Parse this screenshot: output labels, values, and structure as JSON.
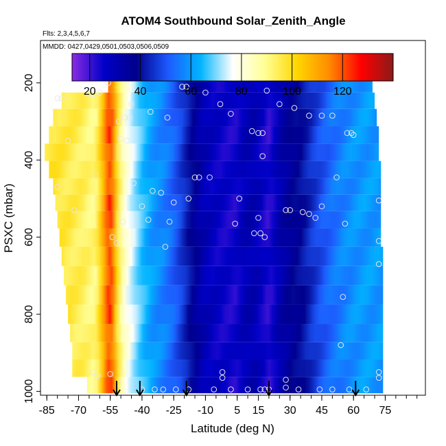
{
  "chart_data": {
    "type": "heatmap",
    "title": "ATOM4 Southbound Solar_Zenith_Angle",
    "flights_note": "Flts: 2,3,4,5,6,7",
    "dates_note": "MMDD: 0427,0429,0501,0503,0506,0509",
    "xlabel": "Latitude (deg N)",
    "ylabel": "PSXC (mbar)",
    "xlim": [
      -88,
      94
    ],
    "ylim": [
      1010,
      90
    ],
    "x_ticks": [
      -85,
      -70,
      -55,
      -40,
      -25,
      -10,
      5,
      15,
      30,
      45,
      60,
      75
    ],
    "x_tick_labels": [
      "-85",
      "-70",
      "-55",
      "-40",
      "-25",
      "-10",
      "5",
      "15",
      "30",
      "45",
      "60",
      "75"
    ],
    "y_ticks": [
      200,
      400,
      600,
      800,
      1000
    ],
    "y_tick_labels": [
      "200",
      "400",
      "600",
      "800",
      "1000"
    ],
    "grid": false,
    "colorbar": {
      "placement": "top",
      "range": [
        13,
        140
      ],
      "ticks": [
        20,
        40,
        60,
        80,
        100,
        120
      ],
      "tick_labels": [
        "20",
        "40",
        "60",
        "80",
        "100",
        "120"
      ],
      "colors": [
        "#8a2be2",
        "#0000c8",
        "#00008b",
        "#1e5aff",
        "#00b4ff",
        "#ffffff",
        "#ffff96",
        "#ffd700",
        "#ff8c00",
        "#ff0000",
        "#8b1a1a"
      ]
    },
    "color_profile": {
      "lat": [
        -84,
        -75,
        -68,
        -62,
        -58,
        -55,
        -52,
        -49,
        -45,
        -40,
        -35,
        -30,
        -25,
        -20,
        -15,
        -12,
        -8,
        -4,
        0,
        4,
        8,
        12,
        16,
        20,
        25,
        30,
        35,
        40,
        45,
        50,
        55,
        60,
        65,
        70,
        74
      ],
      "sza": [
        98,
        96,
        94,
        90,
        110,
        125,
        100,
        84,
        75,
        66,
        60,
        57,
        52,
        45,
        36,
        31,
        28,
        26,
        25,
        24,
        29,
        31,
        27,
        22,
        31,
        36,
        39,
        45,
        50,
        54,
        57,
        59,
        60,
        60,
        60
      ]
    },
    "curtain_levels": [
      {
        "p": 205,
        "lat_min": -56,
        "lat_max": 69
      },
      {
        "p": 245,
        "lat_min": -78,
        "lat_max": 70
      },
      {
        "p": 290,
        "lat_min": -82,
        "lat_max": 71
      },
      {
        "p": 335,
        "lat_min": -84,
        "lat_max": 72
      },
      {
        "p": 380,
        "lat_min": -86,
        "lat_max": 72
      },
      {
        "p": 425,
        "lat_min": -84,
        "lat_max": 73
      },
      {
        "p": 470,
        "lat_min": -82,
        "lat_max": 73
      },
      {
        "p": 510,
        "lat_min": -81,
        "lat_max": 73
      },
      {
        "p": 555,
        "lat_min": -80,
        "lat_max": 73
      },
      {
        "p": 600,
        "lat_min": -79,
        "lat_max": 73
      },
      {
        "p": 650,
        "lat_min": -78,
        "lat_max": 74
      },
      {
        "p": 700,
        "lat_min": -77,
        "lat_max": 74
      },
      {
        "p": 750,
        "lat_min": -76,
        "lat_max": 74
      },
      {
        "p": 800,
        "lat_min": -75,
        "lat_max": 74
      },
      {
        "p": 850,
        "lat_min": -74,
        "lat_max": 74
      },
      {
        "p": 895,
        "lat_min": -73,
        "lat_max": 74
      },
      {
        "p": 940,
        "lat_min": -73,
        "lat_max": 74
      },
      {
        "p": 985,
        "lat_min": -66,
        "lat_max": 74
      }
    ],
    "observation_points": [
      {
        "lat": -56,
        "p": 200
      },
      {
        "lat": -60,
        "p": 225
      },
      {
        "lat": -21,
        "p": 210
      },
      {
        "lat": -19,
        "p": 210
      },
      {
        "lat": -10,
        "p": 225
      },
      {
        "lat": -3,
        "p": 255
      },
      {
        "lat": 19,
        "p": 220
      },
      {
        "lat": 2,
        "p": 280
      },
      {
        "lat": 25,
        "p": 255
      },
      {
        "lat": 32,
        "p": 265
      },
      {
        "lat": 39,
        "p": 285
      },
      {
        "lat": 45,
        "p": 285
      },
      {
        "lat": 50,
        "p": 285
      },
      {
        "lat": -80,
        "p": 240
      },
      {
        "lat": -78,
        "p": 240
      },
      {
        "lat": -65,
        "p": 230
      },
      {
        "lat": -63,
        "p": 230
      },
      {
        "lat": -45,
        "p": 255
      },
      {
        "lat": -36,
        "p": 275
      },
      {
        "lat": -28,
        "p": 290
      },
      {
        "lat": -48,
        "p": 290
      },
      {
        "lat": -46,
        "p": 290
      },
      {
        "lat": -51,
        "p": 300
      },
      {
        "lat": 12,
        "p": 325
      },
      {
        "lat": 15,
        "p": 330
      },
      {
        "lat": 17,
        "p": 330
      },
      {
        "lat": 57,
        "p": 330
      },
      {
        "lat": 59,
        "p": 330
      },
      {
        "lat": 60,
        "p": 335
      },
      {
        "lat": -50,
        "p": 345
      },
      {
        "lat": -47,
        "p": 350
      },
      {
        "lat": 17,
        "p": 390
      },
      {
        "lat": -75,
        "p": 350
      },
      {
        "lat": -62,
        "p": 440
      },
      {
        "lat": -13,
        "p": 445
      },
      {
        "lat": -15,
        "p": 445
      },
      {
        "lat": -8,
        "p": 445
      },
      {
        "lat": 52,
        "p": 445
      },
      {
        "lat": -44,
        "p": 460
      },
      {
        "lat": -80,
        "p": 470
      },
      {
        "lat": -35,
        "p": 480
      },
      {
        "lat": -31,
        "p": 485
      },
      {
        "lat": -25,
        "p": 510
      },
      {
        "lat": -18,
        "p": 500
      },
      {
        "lat": 6,
        "p": 500
      },
      {
        "lat": 72,
        "p": 505
      },
      {
        "lat": -40,
        "p": 520
      },
      {
        "lat": -72,
        "p": 530
      },
      {
        "lat": 28,
        "p": 530
      },
      {
        "lat": 30,
        "p": 530
      },
      {
        "lat": 36,
        "p": 535
      },
      {
        "lat": 39,
        "p": 540
      },
      {
        "lat": 42,
        "p": 550
      },
      {
        "lat": 45,
        "p": 520
      },
      {
        "lat": -37,
        "p": 555
      },
      {
        "lat": -49,
        "p": 560
      },
      {
        "lat": -27,
        "p": 560
      },
      {
        "lat": 4,
        "p": 565
      },
      {
        "lat": 15,
        "p": 550
      },
      {
        "lat": 56,
        "p": 565
      },
      {
        "lat": 13,
        "p": 590
      },
      {
        "lat": 16,
        "p": 590
      },
      {
        "lat": 18,
        "p": 600
      },
      {
        "lat": -54,
        "p": 600
      },
      {
        "lat": -52,
        "p": 615
      },
      {
        "lat": -29,
        "p": 625
      },
      {
        "lat": 72,
        "p": 610
      },
      {
        "lat": 72,
        "p": 670
      },
      {
        "lat": 55,
        "p": 755
      },
      {
        "lat": 54,
        "p": 880
      },
      {
        "lat": 72,
        "p": 950
      },
      {
        "lat": 72,
        "p": 965
      },
      {
        "lat": -2,
        "p": 950
      },
      {
        "lat": -2,
        "p": 965
      },
      {
        "lat": 28,
        "p": 970
      },
      {
        "lat": 28,
        "p": 990
      },
      {
        "lat": -63,
        "p": 950
      },
      {
        "lat": -61,
        "p": 960
      },
      {
        "lat": -55,
        "p": 955
      },
      {
        "lat": -51,
        "p": 980
      },
      {
        "lat": -40,
        "p": 995
      },
      {
        "lat": -34,
        "p": 995
      },
      {
        "lat": -30,
        "p": 995
      },
      {
        "lat": -24,
        "p": 995
      },
      {
        "lat": -18,
        "p": 995
      },
      {
        "lat": -6,
        "p": 995
      },
      {
        "lat": 2,
        "p": 995
      },
      {
        "lat": 10,
        "p": 995
      },
      {
        "lat": 16,
        "p": 995
      },
      {
        "lat": 18,
        "p": 995
      },
      {
        "lat": 20,
        "p": 995
      },
      {
        "lat": 34,
        "p": 995
      },
      {
        "lat": 44,
        "p": 995
      },
      {
        "lat": 50,
        "p": 995
      },
      {
        "lat": 58,
        "p": 995
      },
      {
        "lat": 66,
        "p": 995
      }
    ],
    "arrows_lat": [
      -52,
      -41,
      -19,
      20,
      61
    ]
  }
}
